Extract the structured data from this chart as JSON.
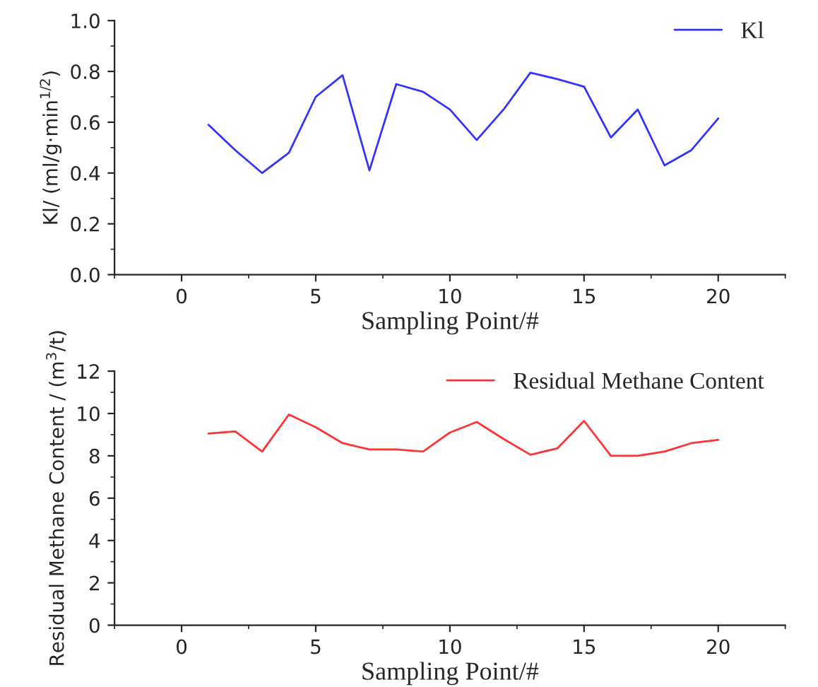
{
  "chart_data": [
    {
      "type": "line",
      "xlabel": "Sampling Point/#",
      "ylabel": "Kl/ (ml/g·min$^{1/2}$)",
      "x": [
        1,
        2,
        3,
        4,
        5,
        6,
        7,
        8,
        9,
        10,
        11,
        12,
        13,
        14,
        15,
        16,
        17,
        18,
        19,
        20
      ],
      "series": [
        {
          "name": "Kl",
          "color": "#3333ff",
          "values": [
            0.59,
            0.49,
            0.4,
            0.48,
            0.7,
            0.785,
            0.41,
            0.75,
            0.72,
            0.65,
            0.53,
            0.65,
            0.795,
            0.77,
            0.74,
            0.54,
            0.65,
            0.43,
            0.49,
            0.615
          ]
        }
      ],
      "xlim": [
        -2.5,
        22.5
      ],
      "xticks": [
        0,
        5,
        10,
        15,
        20
      ],
      "ylim": [
        0,
        1.0
      ],
      "yticks": [
        {
          "value": 0,
          "label": "0.0"
        },
        {
          "value": 0.2,
          "label": "0.2"
        },
        {
          "value": 0.4,
          "label": "0.4"
        },
        {
          "value": 0.6,
          "label": "0.6"
        },
        {
          "value": 0.8,
          "label": "0.8"
        },
        {
          "value": 1.0,
          "label": "1.0"
        }
      ],
      "legend": "top right",
      "grid": false
    },
    {
      "type": "line",
      "xlabel": "Sampling Point/#",
      "ylabel": "Residual Methane Content / (m$^{3}$/t)",
      "x": [
        1,
        2,
        3,
        4,
        5,
        6,
        7,
        8,
        9,
        10,
        11,
        12,
        13,
        14,
        15,
        16,
        17,
        18,
        19,
        20
      ],
      "series": [
        {
          "name": "Residual Methane Content",
          "color": "#ff3333",
          "values": [
            9.05,
            9.15,
            8.2,
            9.95,
            9.35,
            8.6,
            8.3,
            8.3,
            8.2,
            9.1,
            9.6,
            8.8,
            8.05,
            8.35,
            9.65,
            8.0,
            8.0,
            8.2,
            8.6,
            8.75
          ]
        }
      ],
      "xlim": [
        -2.5,
        22.5
      ],
      "xticks": [
        0,
        5,
        10,
        15,
        20
      ],
      "ylim": [
        0,
        12
      ],
      "yticks": [
        0,
        2,
        4,
        6,
        8,
        10,
        12
      ],
      "legend": "top right",
      "grid": false
    }
  ]
}
